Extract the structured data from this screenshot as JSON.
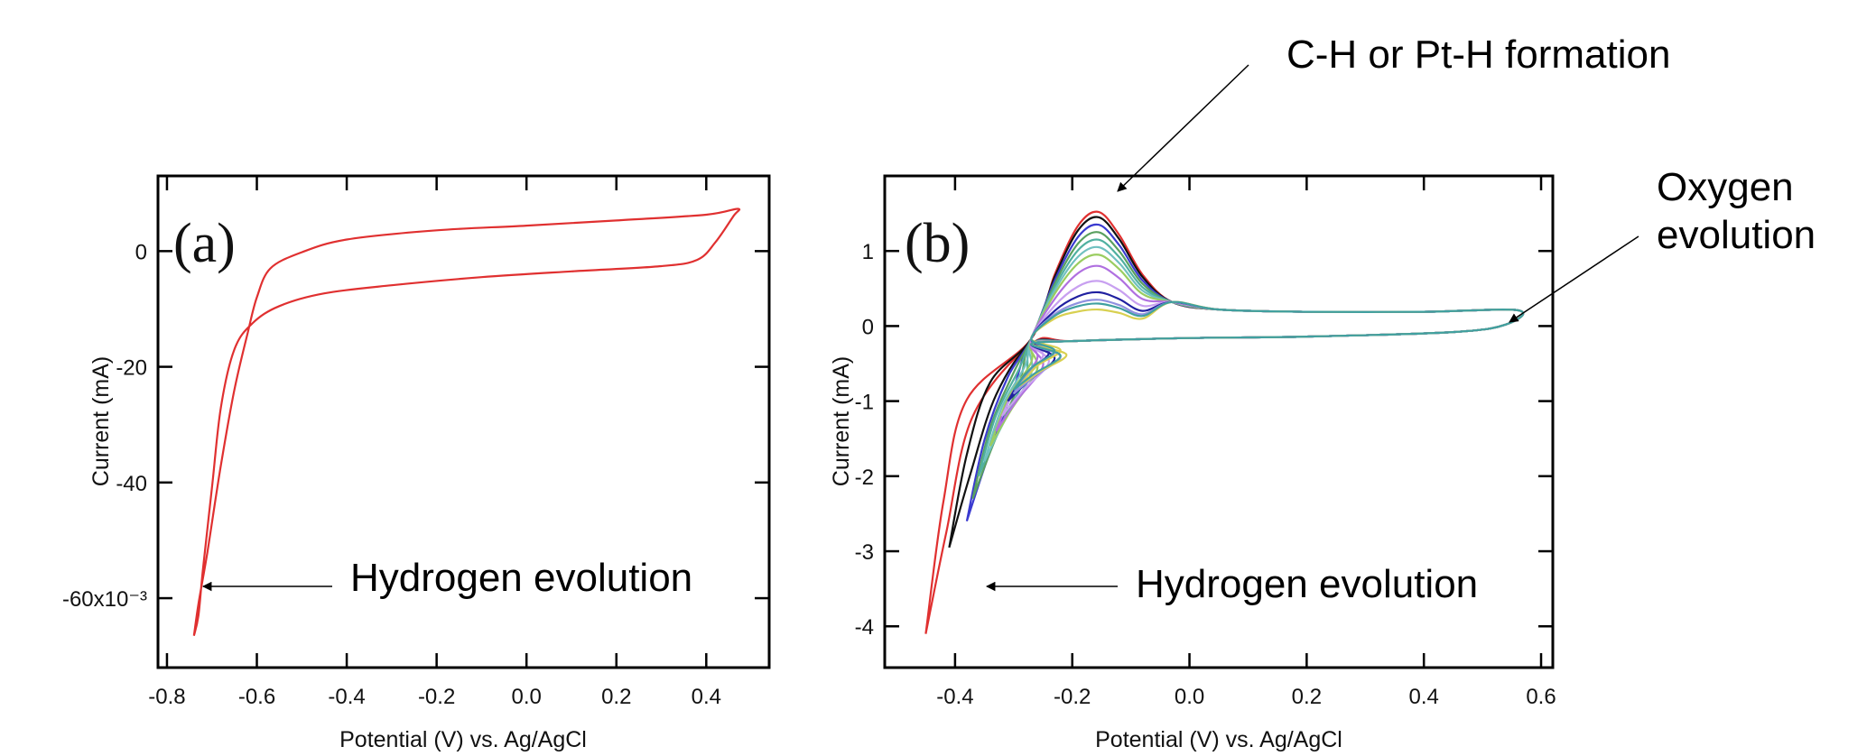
{
  "chart_data": [
    {
      "type": "line",
      "panel_label": "(a)",
      "xlabel": "Potential (V) vs. Ag/AgCl",
      "ylabel": "Current (mA)",
      "xlim": [
        -0.82,
        0.54
      ],
      "ylim": [
        -72,
        13
      ],
      "x_ticks": [
        -0.8,
        -0.6,
        -0.4,
        -0.2,
        0.0,
        0.2,
        0.4
      ],
      "x_tick_labels": [
        "-0.8",
        "-0.6",
        "-0.4",
        "-0.2",
        "0.0",
        "0.2",
        "0.4"
      ],
      "y_ticks": [
        0,
        -20,
        -40,
        -60
      ],
      "y_tick_labels": [
        "0",
        "-20",
        "-40",
        "-60x10⁻³"
      ],
      "grid": false,
      "series": [
        {
          "color": "#e03030",
          "points": [
            [
              -0.74,
              -66.5
            ],
            [
              -0.73,
              -61
            ],
            [
              -0.71,
              -52
            ],
            [
              -0.68,
              -37
            ],
            [
              -0.65,
              -24
            ],
            [
              -0.62,
              -14
            ],
            [
              -0.6,
              -8
            ],
            [
              -0.57,
              -3
            ],
            [
              -0.5,
              -0.2
            ],
            [
              -0.4,
              2
            ],
            [
              -0.2,
              3.6
            ],
            [
              0.0,
              4.4
            ],
            [
              0.2,
              5.3
            ],
            [
              0.4,
              6.3
            ],
            [
              0.47,
              7.3
            ],
            [
              0.46,
              6
            ],
            [
              0.42,
              1.5
            ],
            [
              0.38,
              -1.5
            ],
            [
              0.3,
              -2.6
            ],
            [
              0.1,
              -3.5
            ],
            [
              -0.1,
              -4.5
            ],
            [
              -0.3,
              -5.9
            ],
            [
              -0.45,
              -7.3
            ],
            [
              -0.55,
              -9.5
            ],
            [
              -0.61,
              -12.5
            ],
            [
              -0.65,
              -17
            ],
            [
              -0.68,
              -27
            ],
            [
              -0.7,
              -41
            ],
            [
              -0.72,
              -55
            ],
            [
              -0.73,
              -63
            ],
            [
              -0.74,
              -66.5
            ]
          ]
        }
      ],
      "annotations": [
        {
          "text": "Hydrogen evolution",
          "x": -0.72,
          "y": -58
        }
      ]
    },
    {
      "type": "line",
      "panel_label": "(b)",
      "xlabel": "Potential (V) vs. Ag/AgCl",
      "ylabel": "Current (mA)",
      "xlim": [
        -0.52,
        0.62
      ],
      "ylim": [
        -4.55,
        2.0
      ],
      "x_ticks": [
        -0.4,
        -0.2,
        0.0,
        0.2,
        0.4,
        0.6
      ],
      "x_tick_labels": [
        "-0.4",
        "-0.2",
        "0.0",
        "0.2",
        "0.4",
        "0.6"
      ],
      "y_ticks": [
        1,
        0,
        -1,
        -2,
        -3,
        -4
      ],
      "y_tick_labels": [
        "1",
        "0",
        "-1",
        "-2",
        "-3",
        "-4"
      ],
      "grid": false,
      "cycles": [
        {
          "color": "#e03030",
          "peak": 1.52,
          "vmin": -0.45,
          "imin": -4.1
        },
        {
          "color": "#111111",
          "peak": 1.45,
          "vmin": -0.41,
          "imin": -2.95
        },
        {
          "color": "#3a3ad0",
          "peak": 1.35,
          "vmin": -0.38,
          "imin": -2.6
        },
        {
          "color": "#5aa060",
          "peak": 1.25,
          "vmin": -0.37,
          "imin": -2.3
        },
        {
          "color": "#50b0a0",
          "peak": 1.15,
          "vmin": -0.36,
          "imin": -2.0
        },
        {
          "color": "#70c0c0",
          "peak": 1.05,
          "vmin": -0.35,
          "imin": -1.8
        },
        {
          "color": "#9acd60",
          "peak": 0.95,
          "vmin": -0.34,
          "imin": -1.6
        },
        {
          "color": "#b070e0",
          "peak": 0.8,
          "vmin": -0.33,
          "imin": -1.4
        },
        {
          "color": "#c8a0f0",
          "peak": 0.6,
          "vmin": -0.32,
          "imin": -1.2
        },
        {
          "color": "#2020a0",
          "peak": 0.45,
          "vmin": -0.31,
          "imin": -1.0
        },
        {
          "color": "#9090e0",
          "peak": 0.35,
          "vmin": -0.3,
          "imin": -0.9
        },
        {
          "color": "#d8d050",
          "peak": 0.22,
          "vmin": -0.29,
          "imin": -0.8
        },
        {
          "color": "#40a0a0",
          "peak": 0.3,
          "vmin": -0.3,
          "imin": -0.85
        }
      ],
      "annotations": [
        {
          "text": "C-H or Pt-H formation",
          "x": -0.15,
          "y": 1.6
        },
        {
          "text": "Oxygen evolution",
          "x": 0.57,
          "y": 0.0
        },
        {
          "text": "Hydrogen evolution",
          "x": -0.38,
          "y": -3.4
        }
      ]
    }
  ],
  "annotations": {
    "ch_formation": "C-H or Pt-H formation",
    "oxygen_line1": "Oxygen",
    "oxygen_line2": "evolution",
    "hydrogen_a": "Hydrogen evolution",
    "hydrogen_b": "Hydrogen evolution"
  }
}
